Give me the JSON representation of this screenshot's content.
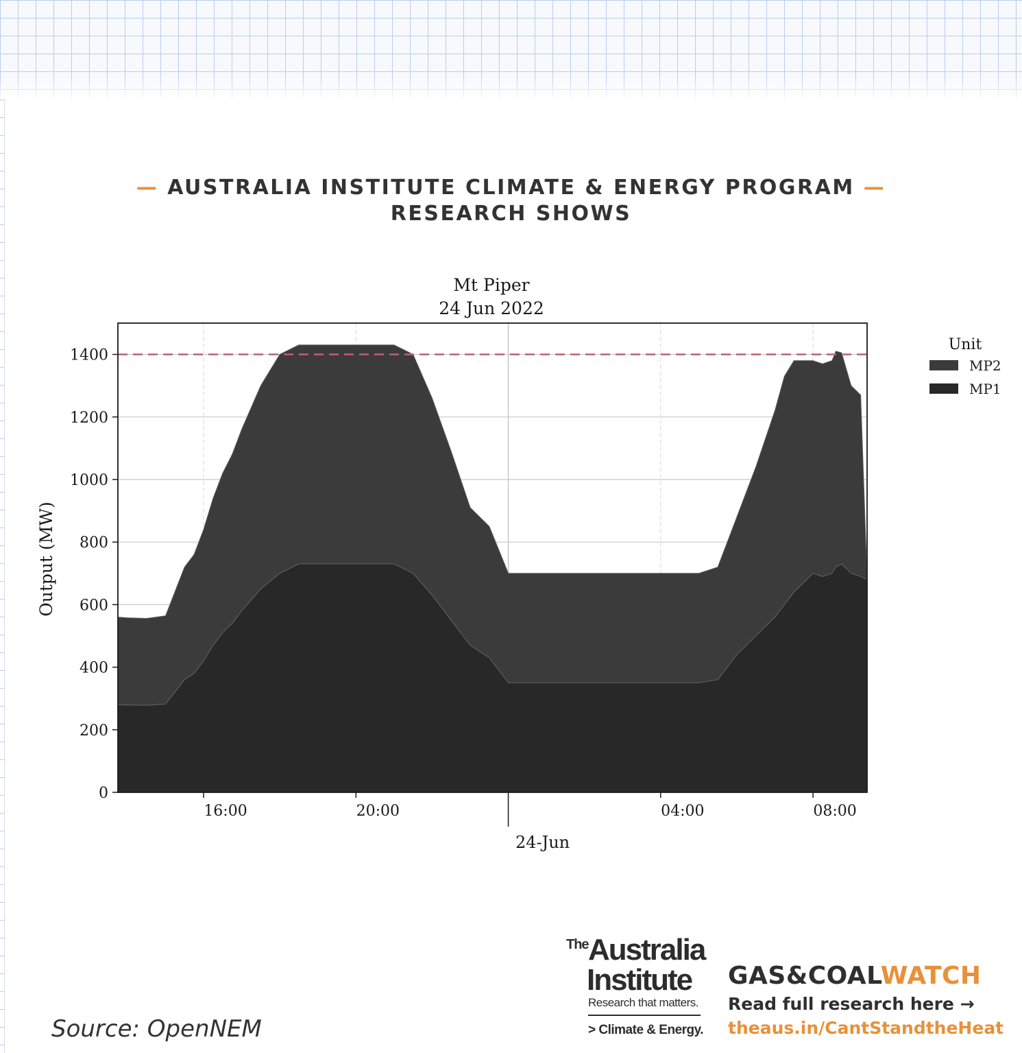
{
  "header": {
    "dash": "—",
    "line1": "AUSTRALIA INSTITUTE CLIMATE & ENERGY PROGRAM",
    "line2": "RESEARCH SHOWS"
  },
  "chart_data": {
    "type": "area",
    "stacked": true,
    "title": "Mt Piper",
    "subtitle": "24 Jun 2022",
    "ylabel": "Output (MW)",
    "xlabel": "",
    "x_unit": "hours since 00:00 on 23 Jun 2022",
    "xlim": [
      13.75,
      9.42
    ],
    "ylim": [
      0,
      1500
    ],
    "yticks": [
      0,
      200,
      400,
      600,
      800,
      1000,
      1200,
      1400
    ],
    "xticks": [
      {
        "value": 16,
        "label": "16:00"
      },
      {
        "value": 20,
        "label": "20:00"
      },
      {
        "value": 28,
        "label": "04:00"
      },
      {
        "value": 32,
        "label": "08:00"
      }
    ],
    "date_tick": {
      "value": 24,
      "label": "24-Jun"
    },
    "grid": true,
    "reference_line": {
      "y": 1400,
      "style": "dashed",
      "color": "#c0616f"
    },
    "legend": {
      "title": "Unit",
      "placement": "outside-right"
    },
    "colors": {
      "MP2": "#3b3b3b",
      "MP1": "#282828"
    },
    "x": [
      13.75,
      14,
      14.5,
      15,
      15.5,
      15.75,
      16,
      16.25,
      16.5,
      16.75,
      17,
      17.5,
      18,
      18.5,
      19,
      19.25,
      19.5,
      20,
      20.5,
      21,
      21.5,
      22,
      22.5,
      23,
      23.5,
      24,
      24.5,
      25,
      26,
      27,
      28,
      28.5,
      29,
      29.5,
      30,
      30.5,
      31,
      31.25,
      31.5,
      32,
      32.25,
      32.5,
      32.6,
      32.75,
      33,
      33.25,
      33.42
    ],
    "series": [
      {
        "name": "MP1",
        "values": [
          280,
          279,
          278,
          282,
          360,
          380,
          420,
          470,
          510,
          540,
          580,
          650,
          700,
          730,
          730,
          730,
          730,
          730,
          730,
          730,
          700,
          630,
          550,
          470,
          430,
          350,
          350,
          350,
          350,
          350,
          350,
          350,
          350,
          360,
          440,
          500,
          560,
          600,
          640,
          700,
          690,
          700,
          720,
          730,
          700,
          690,
          680
        ]
      },
      {
        "name": "MP2",
        "values": [
          280,
          279,
          278,
          282,
          360,
          380,
          420,
          470,
          510,
          540,
          580,
          650,
          700,
          700,
          700,
          700,
          700,
          700,
          700,
          700,
          700,
          630,
          540,
          440,
          420,
          350,
          350,
          350,
          350,
          350,
          350,
          350,
          350,
          360,
          440,
          540,
          660,
          730,
          740,
          680,
          680,
          680,
          690,
          675,
          600,
          580,
          0
        ]
      }
    ]
  },
  "footer": {
    "source": "Source: OpenNEM",
    "ai_the": "The",
    "ai_australia": "Australia",
    "ai_institute": "Institute",
    "ai_tagline": "Research that matters.",
    "ai_program": "> Climate & Energy.",
    "gcw_brand_dark": "GAS&COAL",
    "gcw_brand_accent": "WATCH",
    "gcw_read": "Read full research here →",
    "gcw_url": "theaus.in/CantStandtheHeat"
  }
}
